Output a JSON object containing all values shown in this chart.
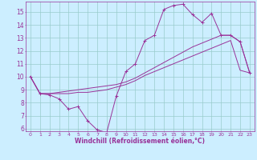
{
  "xlabel": "Windchill (Refroidissement éolien,°C)",
  "xlim": [
    -0.5,
    23.5
  ],
  "ylim": [
    5.8,
    15.8
  ],
  "yticks": [
    6,
    7,
    8,
    9,
    10,
    11,
    12,
    13,
    14,
    15
  ],
  "xticks": [
    0,
    1,
    2,
    3,
    4,
    5,
    6,
    7,
    8,
    9,
    10,
    11,
    12,
    13,
    14,
    15,
    16,
    17,
    18,
    19,
    20,
    21,
    22,
    23
  ],
  "background_color": "#cceeff",
  "grid_color": "#99cccc",
  "line_color": "#993399",
  "lines": [
    {
      "x": [
        0,
        1,
        2,
        3,
        4,
        5,
        6,
        7,
        8,
        9,
        10,
        11,
        12,
        13,
        14,
        15,
        16,
        17,
        18,
        19,
        20,
        21,
        22,
        23
      ],
      "y": [
        10.0,
        8.7,
        8.6,
        8.3,
        7.5,
        7.7,
        6.6,
        5.9,
        5.7,
        8.5,
        10.4,
        11.0,
        12.8,
        13.2,
        15.2,
        15.5,
        15.6,
        14.8,
        14.2,
        14.9,
        13.2,
        13.2,
        12.7,
        10.3
      ],
      "marker": "+"
    },
    {
      "x": [
        0,
        1,
        2,
        3,
        4,
        5,
        6,
        7,
        8,
        9,
        10,
        11,
        12,
        13,
        14,
        15,
        16,
        17,
        18,
        19,
        20,
        21,
        22,
        23
      ],
      "y": [
        10.0,
        8.7,
        8.7,
        8.8,
        8.9,
        9.0,
        9.1,
        9.2,
        9.3,
        9.4,
        9.6,
        9.9,
        10.3,
        10.7,
        11.1,
        11.5,
        11.9,
        12.3,
        12.6,
        12.9,
        13.2,
        13.2,
        12.7,
        10.3
      ],
      "marker": null
    },
    {
      "x": [
        0,
        1,
        2,
        3,
        4,
        5,
        6,
        7,
        8,
        9,
        10,
        11,
        12,
        13,
        14,
        15,
        16,
        17,
        18,
        19,
        20,
        21,
        22,
        23
      ],
      "y": [
        10.0,
        8.7,
        8.7,
        8.7,
        8.7,
        8.8,
        8.8,
        8.9,
        9.0,
        9.2,
        9.4,
        9.7,
        10.1,
        10.4,
        10.7,
        11.0,
        11.3,
        11.6,
        11.9,
        12.2,
        12.5,
        12.8,
        10.5,
        10.3
      ],
      "marker": null
    }
  ]
}
